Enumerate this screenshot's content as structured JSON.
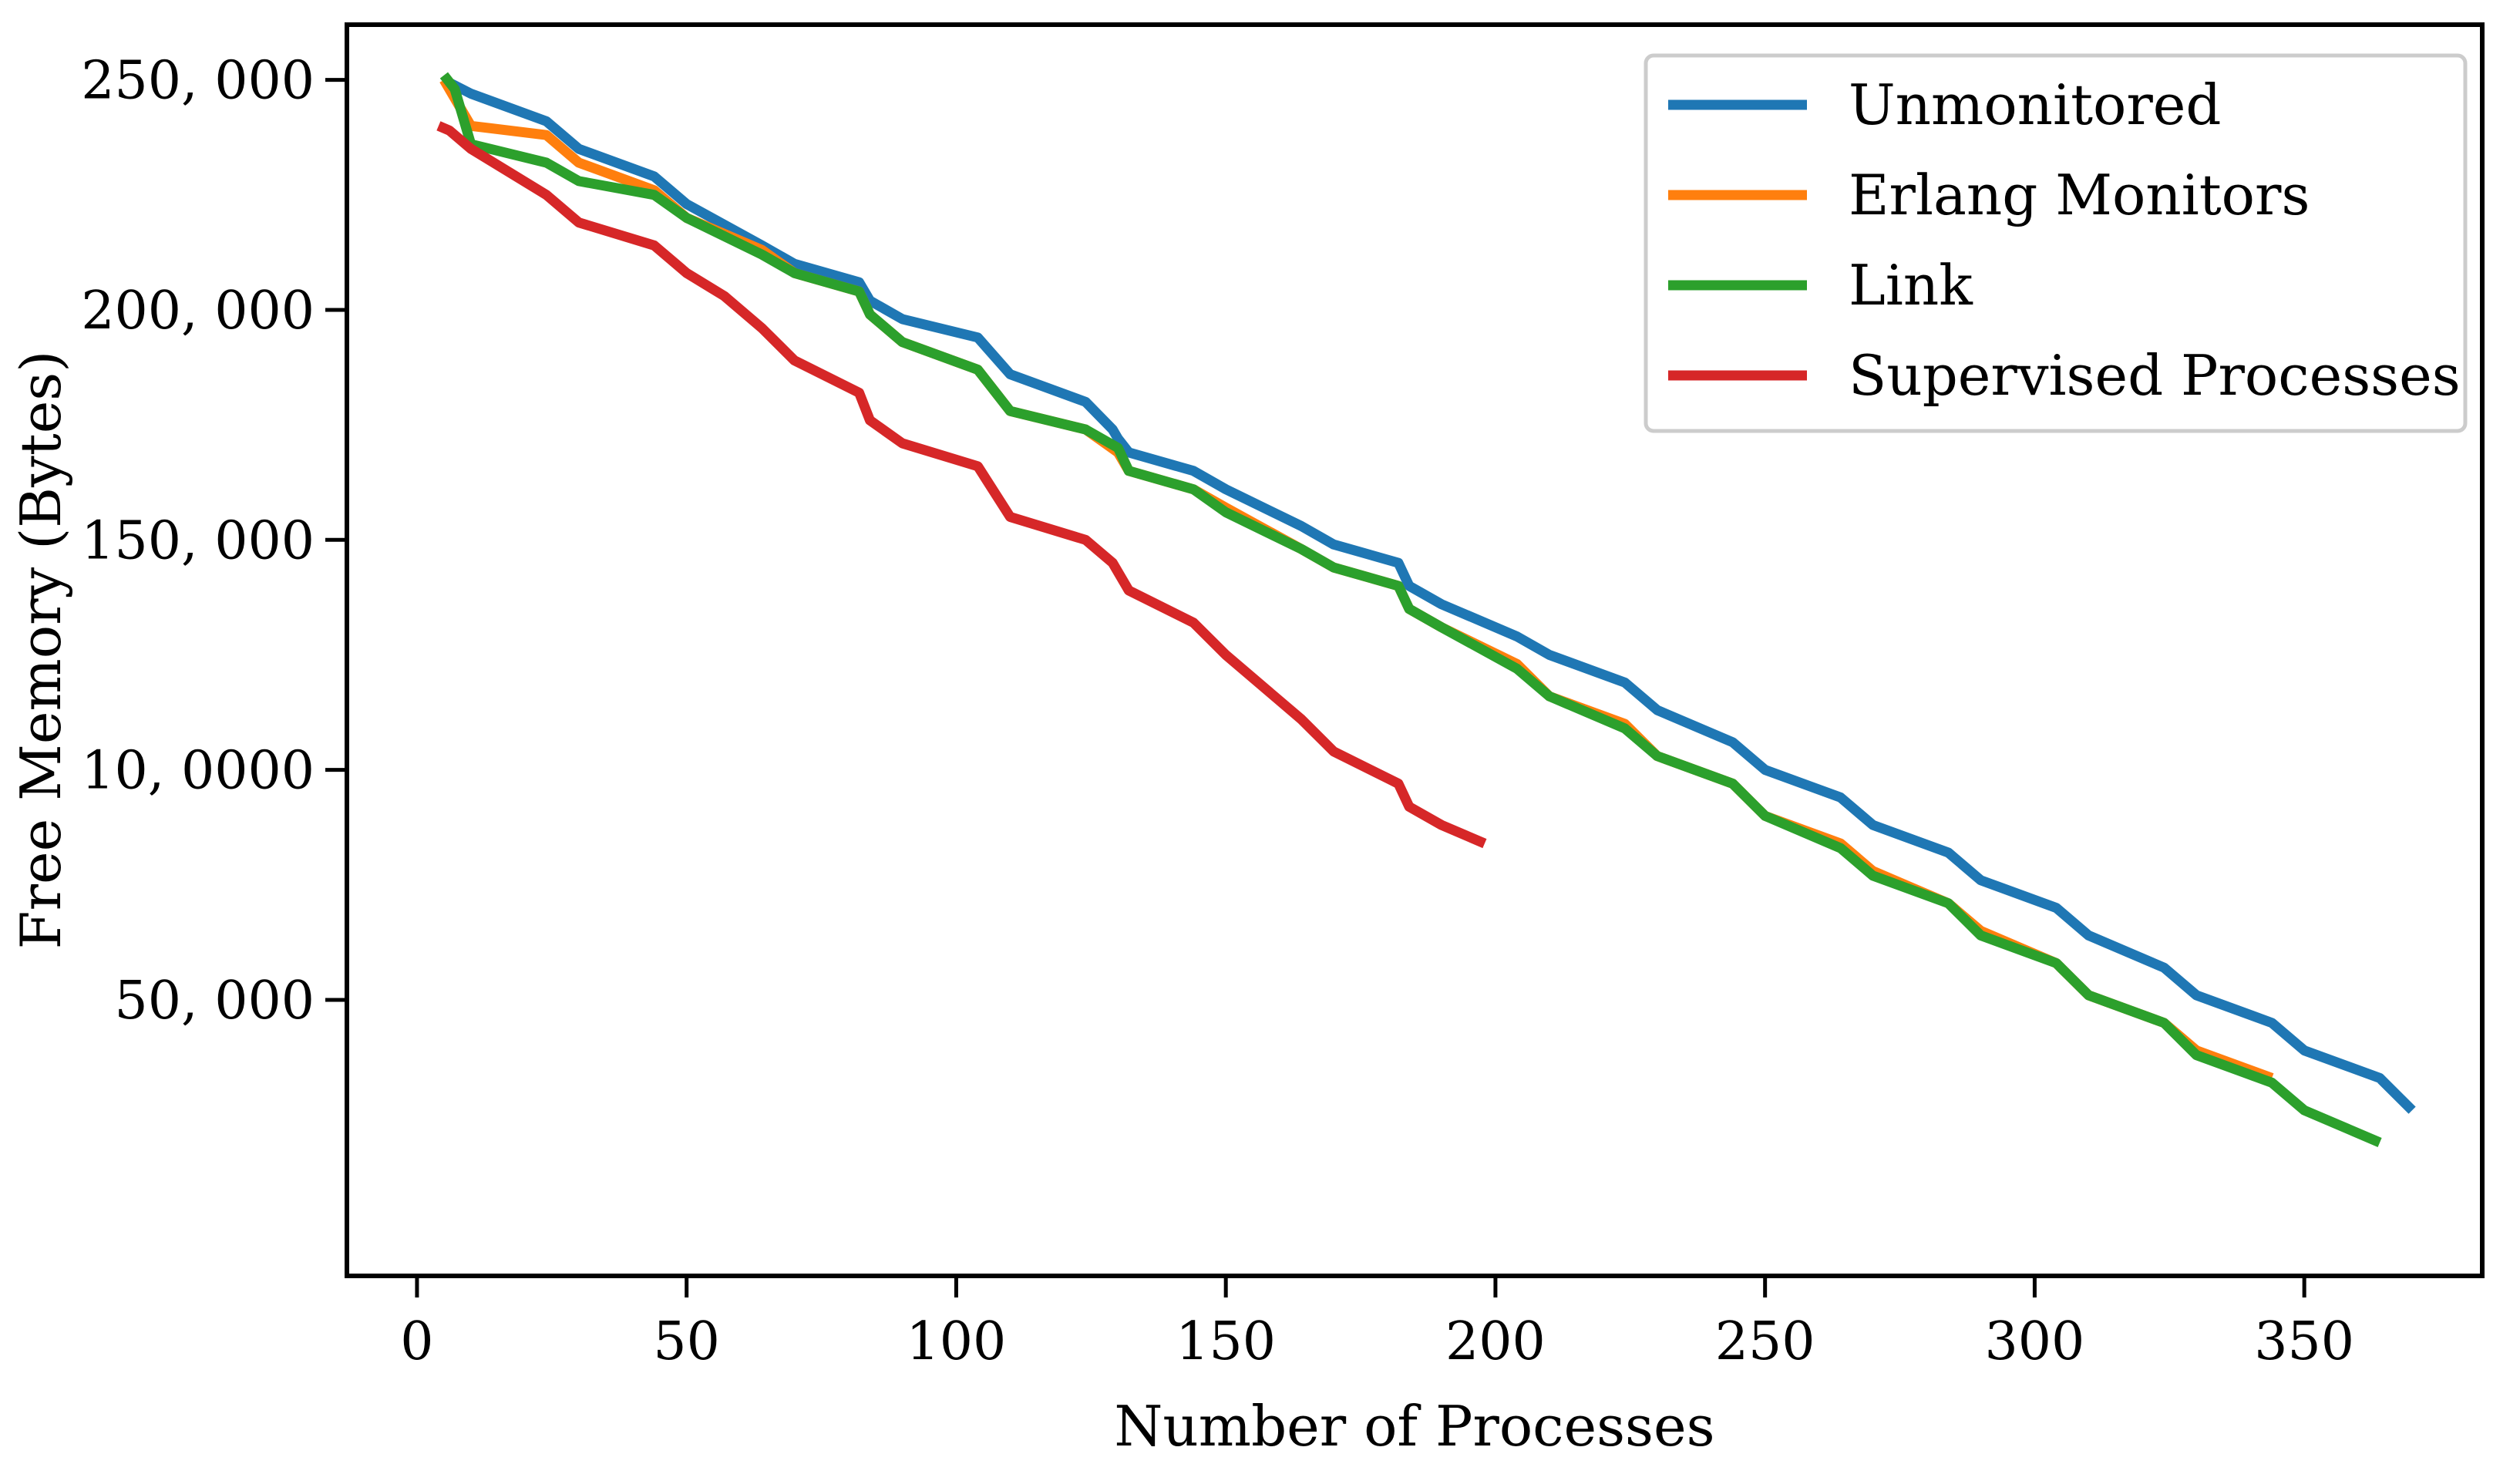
{
  "chart_data": {
    "type": "line",
    "title": "",
    "xlabel": "Number of Processes",
    "ylabel": "Free Memory (Bytes)",
    "xlim": [
      -13,
      383
    ],
    "ylim": [
      -10000,
      262000
    ],
    "x_ticks": [
      0,
      50,
      100,
      150,
      200,
      250,
      300,
      350
    ],
    "x_tick_labels": [
      "0",
      "50",
      "100",
      "150",
      "200",
      "250",
      "300",
      "350"
    ],
    "y_ticks": [
      50000,
      100000,
      150000,
      200000,
      250000
    ],
    "y_tick_labels": [
      "50, 000",
      "10, 0000",
      "150, 000",
      "200, 000",
      "250, 000"
    ],
    "grid": false,
    "legend_position": "top-right",
    "series": [
      {
        "name": "Unmonitored",
        "color": "#1f77b4",
        "x": [
          5,
          10,
          24,
          30,
          44,
          50,
          64,
          70,
          82,
          84,
          90,
          104,
          110,
          124,
          129,
          130,
          132,
          144,
          150,
          164,
          170,
          182,
          184,
          190,
          204,
          210,
          224,
          230,
          244,
          250,
          264,
          270,
          284,
          290,
          304,
          310,
          324,
          330,
          344,
          350,
          364,
          370
        ],
        "values": [
          250000,
          247000,
          241000,
          235000,
          229000,
          223000,
          214000,
          210000,
          206000,
          202000,
          198000,
          194000,
          186000,
          180000,
          174000,
          172000,
          169000,
          165000,
          161000,
          153000,
          149000,
          145000,
          140000,
          136000,
          129000,
          125000,
          119000,
          113000,
          106000,
          100000,
          94000,
          88000,
          82000,
          76000,
          70000,
          64000,
          57000,
          51000,
          45000,
          39000,
          33000,
          26000
        ]
      },
      {
        "name": "Erlang Monitors",
        "color": "#ff7f0e",
        "x": [
          5,
          10,
          24,
          30,
          44,
          50,
          64,
          70,
          82,
          84,
          90,
          104,
          110,
          124,
          130,
          132,
          144,
          150,
          164,
          170,
          182,
          184,
          190,
          204,
          210,
          224,
          230,
          244,
          250,
          264,
          270,
          284,
          290,
          304,
          310,
          324,
          330,
          344
        ],
        "values": [
          250000,
          240000,
          238000,
          232000,
          226000,
          220000,
          213000,
          208000,
          204000,
          199000,
          193000,
          187000,
          178000,
          174000,
          169000,
          165000,
          161000,
          157000,
          148000,
          144000,
          140000,
          135000,
          131000,
          123000,
          116000,
          110000,
          103000,
          97000,
          90000,
          84000,
          78000,
          71000,
          65000,
          58000,
          51000,
          45000,
          39000,
          33000
        ]
      },
      {
        "name": "Link",
        "color": "#2ca02c",
        "x": [
          5,
          7,
          10,
          24,
          30,
          44,
          50,
          64,
          70,
          82,
          84,
          90,
          104,
          110,
          124,
          130,
          132,
          144,
          150,
          164,
          170,
          182,
          184,
          190,
          204,
          210,
          224,
          230,
          244,
          250,
          264,
          270,
          284,
          290,
          304,
          310,
          324,
          330,
          344,
          350,
          364
        ],
        "values": [
          251000,
          248000,
          236000,
          232000,
          228000,
          225000,
          220000,
          212000,
          208000,
          204000,
          199000,
          193000,
          187000,
          178000,
          174000,
          170000,
          165000,
          161000,
          156000,
          148000,
          144000,
          140000,
          135000,
          131000,
          122000,
          116000,
          109000,
          103000,
          97000,
          90000,
          83000,
          77000,
          71000,
          64000,
          58000,
          51000,
          45000,
          38000,
          32000,
          26000,
          19000
        ]
      },
      {
        "name": "Supervised Processes",
        "color": "#d62728",
        "x": [
          4,
          6,
          10,
          24,
          30,
          44,
          50,
          57,
          64,
          70,
          82,
          84,
          90,
          104,
          110,
          124,
          129,
          132,
          144,
          150,
          164,
          170,
          182,
          184,
          190,
          198
        ],
        "values": [
          240000,
          239000,
          235000,
          225000,
          219000,
          214000,
          208000,
          203000,
          196000,
          189000,
          182000,
          176000,
          171000,
          166000,
          155000,
          150000,
          145000,
          139000,
          132000,
          125000,
          111000,
          104000,
          97000,
          92000,
          88000,
          84000
        ]
      }
    ]
  }
}
